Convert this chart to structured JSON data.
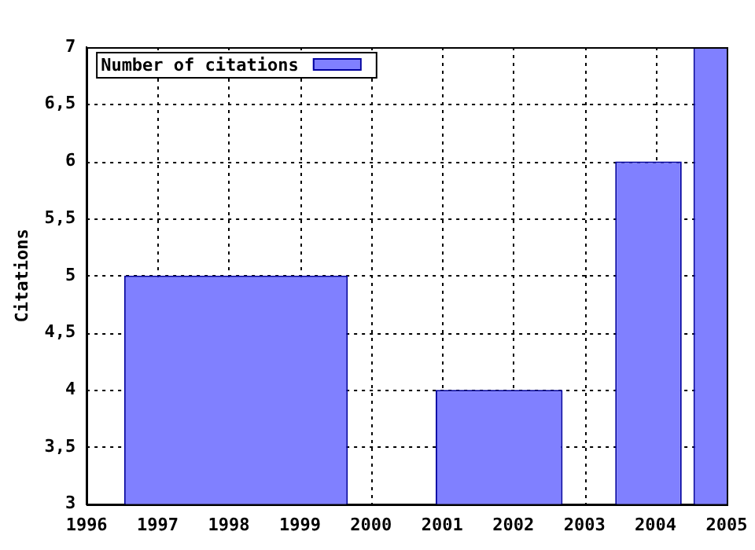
{
  "chart_data": {
    "type": "bar",
    "ylabel": "Citations",
    "x": [
      1998.1,
      2001.8,
      2003.9,
      2005
    ],
    "series": [
      {
        "name": "Number of citations",
        "color": "#8080ff",
        "values": [
          5,
          4,
          6,
          7
        ]
      }
    ],
    "xlim": [
      1996,
      2005
    ],
    "xticks": [
      1996,
      1997,
      1998,
      1999,
      2000,
      2001,
      2002,
      2003,
      2004,
      2005
    ],
    "ylim": [
      3,
      7
    ],
    "yticks": [
      3,
      {
        "value": 3.5,
        "label": "3,5"
      },
      4,
      {
        "value": 4.5,
        "label": "4,5"
      },
      5,
      {
        "value": 5.5,
        "label": "5,5"
      },
      6,
      {
        "value": 6.5,
        "label": "6,5"
      },
      7
    ],
    "grid": true,
    "legend": "top left"
  }
}
